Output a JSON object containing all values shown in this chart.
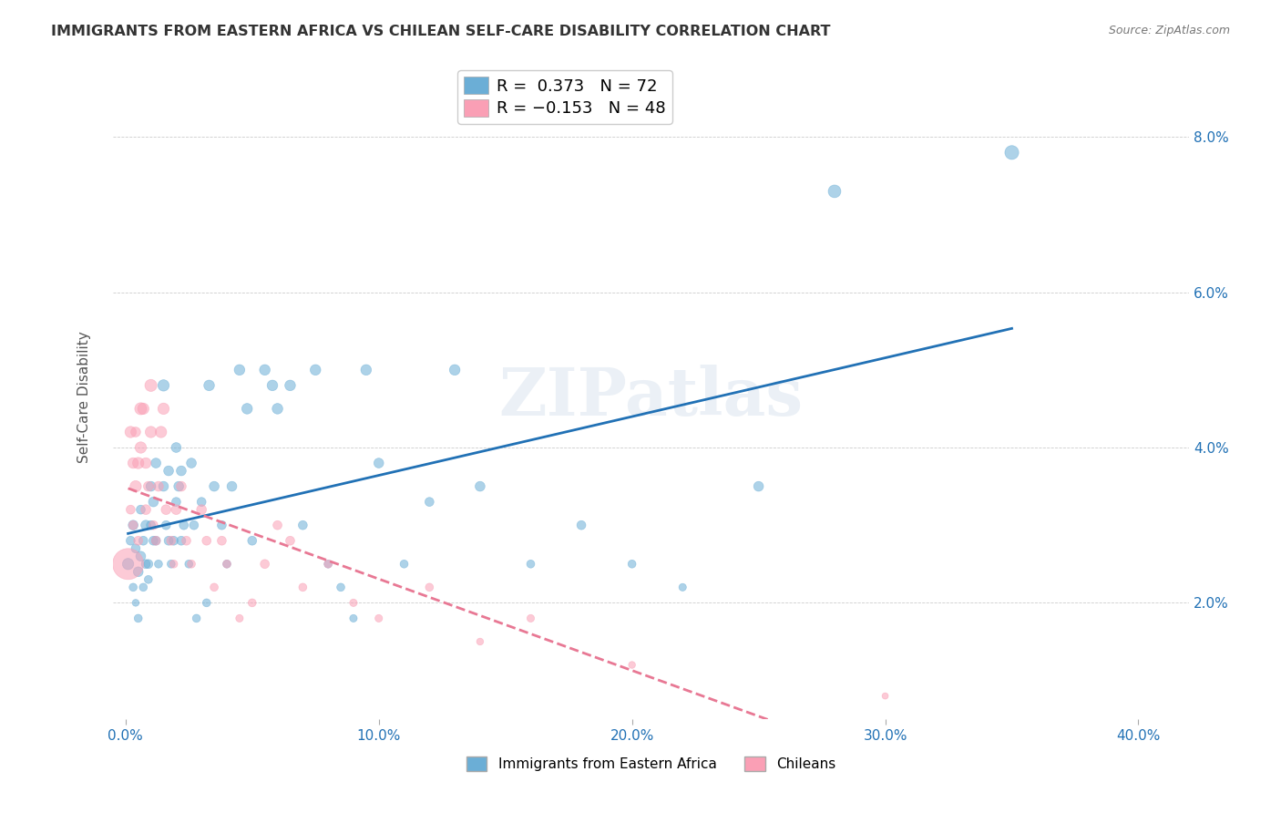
{
  "title": "IMMIGRANTS FROM EASTERN AFRICA VS CHILEAN SELF-CARE DISABILITY CORRELATION CHART",
  "source": "Source: ZipAtlas.com",
  "xlabel_ticks": [
    "0.0%",
    "10.0%",
    "20.0%",
    "30.0%",
    "40.0%"
  ],
  "xlabel_vals": [
    0.0,
    0.1,
    0.2,
    0.3,
    0.4
  ],
  "ylabel_ticks": [
    "2.0%",
    "4.0%",
    "6.0%",
    "8.0%"
  ],
  "ylabel_vals": [
    0.02,
    0.04,
    0.06,
    0.08
  ],
  "ylabel_label": "Self-Care Disability",
  "xlim": [
    -0.005,
    0.42
  ],
  "ylim": [
    0.005,
    0.088
  ],
  "legend1_label": "Immigrants from Eastern Africa",
  "legend2_label": "Chileans",
  "r1": 0.373,
  "n1": 72,
  "r2": -0.153,
  "n2": 48,
  "color_blue": "#6baed6",
  "color_pink": "#fa9fb5",
  "watermark": "ZIPatlas",
  "blue_scatter_x": [
    0.001,
    0.002,
    0.003,
    0.003,
    0.004,
    0.004,
    0.005,
    0.005,
    0.006,
    0.006,
    0.007,
    0.007,
    0.008,
    0.008,
    0.009,
    0.009,
    0.01,
    0.01,
    0.011,
    0.011,
    0.012,
    0.012,
    0.013,
    0.015,
    0.015,
    0.016,
    0.017,
    0.017,
    0.018,
    0.019,
    0.02,
    0.02,
    0.021,
    0.022,
    0.022,
    0.023,
    0.025,
    0.026,
    0.027,
    0.028,
    0.03,
    0.032,
    0.033,
    0.035,
    0.038,
    0.04,
    0.042,
    0.045,
    0.048,
    0.05,
    0.055,
    0.058,
    0.06,
    0.065,
    0.07,
    0.075,
    0.08,
    0.085,
    0.09,
    0.095,
    0.1,
    0.11,
    0.12,
    0.13,
    0.14,
    0.16,
    0.18,
    0.2,
    0.22,
    0.25,
    0.28,
    0.35
  ],
  "blue_scatter_y": [
    0.025,
    0.028,
    0.03,
    0.022,
    0.027,
    0.02,
    0.024,
    0.018,
    0.032,
    0.026,
    0.028,
    0.022,
    0.03,
    0.025,
    0.025,
    0.023,
    0.035,
    0.03,
    0.028,
    0.033,
    0.038,
    0.028,
    0.025,
    0.048,
    0.035,
    0.03,
    0.037,
    0.028,
    0.025,
    0.028,
    0.04,
    0.033,
    0.035,
    0.028,
    0.037,
    0.03,
    0.025,
    0.038,
    0.03,
    0.018,
    0.033,
    0.02,
    0.048,
    0.035,
    0.03,
    0.025,
    0.035,
    0.05,
    0.045,
    0.028,
    0.05,
    0.048,
    0.045,
    0.048,
    0.03,
    0.05,
    0.025,
    0.022,
    0.018,
    0.05,
    0.038,
    0.025,
    0.033,
    0.05,
    0.035,
    0.025,
    0.03,
    0.025,
    0.022,
    0.035,
    0.073,
    0.078
  ],
  "pink_scatter_x": [
    0.001,
    0.002,
    0.002,
    0.003,
    0.003,
    0.004,
    0.004,
    0.005,
    0.005,
    0.006,
    0.006,
    0.007,
    0.008,
    0.008,
    0.009,
    0.01,
    0.01,
    0.011,
    0.012,
    0.013,
    0.014,
    0.015,
    0.016,
    0.018,
    0.019,
    0.02,
    0.022,
    0.024,
    0.026,
    0.03,
    0.032,
    0.035,
    0.038,
    0.04,
    0.045,
    0.05,
    0.055,
    0.06,
    0.065,
    0.07,
    0.08,
    0.09,
    0.1,
    0.12,
    0.14,
    0.16,
    0.2,
    0.3
  ],
  "pink_scatter_y": [
    0.025,
    0.042,
    0.032,
    0.038,
    0.03,
    0.035,
    0.042,
    0.038,
    0.028,
    0.045,
    0.04,
    0.045,
    0.032,
    0.038,
    0.035,
    0.042,
    0.048,
    0.03,
    0.028,
    0.035,
    0.042,
    0.045,
    0.032,
    0.028,
    0.025,
    0.032,
    0.035,
    0.028,
    0.025,
    0.032,
    0.028,
    0.022,
    0.028,
    0.025,
    0.018,
    0.02,
    0.025,
    0.03,
    0.028,
    0.022,
    0.025,
    0.02,
    0.018,
    0.022,
    0.015,
    0.018,
    0.012,
    0.008
  ],
  "blue_size": [
    80,
    50,
    60,
    40,
    50,
    30,
    60,
    40,
    50,
    60,
    50,
    40,
    60,
    50,
    50,
    40,
    60,
    50,
    50,
    60,
    60,
    50,
    40,
    80,
    60,
    50,
    60,
    50,
    40,
    50,
    60,
    50,
    60,
    50,
    60,
    50,
    40,
    60,
    50,
    40,
    50,
    40,
    70,
    60,
    50,
    40,
    60,
    70,
    70,
    50,
    70,
    70,
    70,
    70,
    50,
    70,
    40,
    40,
    35,
    70,
    60,
    40,
    50,
    70,
    60,
    40,
    50,
    40,
    35,
    60,
    100,
    120
  ],
  "pink_size": [
    600,
    80,
    50,
    70,
    50,
    80,
    60,
    80,
    50,
    90,
    80,
    80,
    60,
    70,
    60,
    80,
    90,
    50,
    50,
    60,
    80,
    80,
    60,
    50,
    40,
    60,
    60,
    50,
    40,
    60,
    50,
    40,
    50,
    40,
    35,
    40,
    50,
    50,
    50,
    40,
    40,
    35,
    35,
    40,
    30,
    35,
    30,
    25
  ]
}
